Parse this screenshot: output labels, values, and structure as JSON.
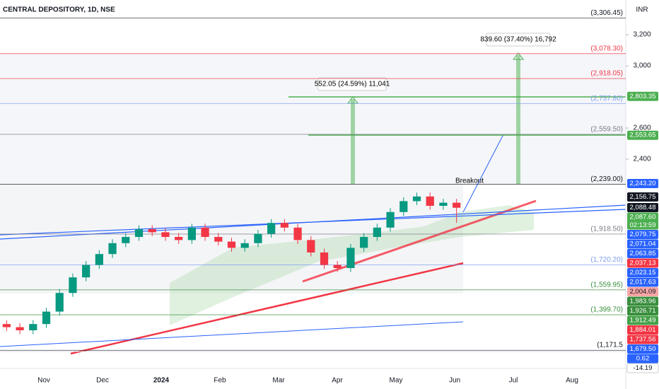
{
  "chart_data": {
    "type": "candlestick",
    "title": "CENTRAL DEPOSITORY, 1D, NSE",
    "currency": "INR",
    "ylim": [
      1068,
      3423
    ],
    "yticks": [
      {
        "value": 2400,
        "label": "2,400"
      },
      {
        "value": 2600,
        "label": "2,600"
      },
      {
        "value": 3000,
        "label": "3,000"
      },
      {
        "value": 3200,
        "label": "3,200"
      }
    ],
    "categories": [
      "Nov",
      "Dec",
      "2024",
      "Feb",
      "Mar",
      "Apr",
      "May",
      "Jun",
      "Jul",
      "Aug"
    ],
    "up_color": "#089981",
    "down_color": "#f23645",
    "open": [
      1340,
      1320,
      1300,
      1340,
      1420,
      1540,
      1640,
      1720,
      1790,
      1860,
      1900,
      1950,
      1930,
      1900,
      1880,
      1960,
      1900,
      1870,
      1830,
      1860,
      1920,
      1990,
      1960,
      1880,
      1800,
      1720,
      1700,
      1830,
      1900,
      1960,
      2060,
      2130,
      2160,
      2100,
      2120
    ],
    "high": [
      1365,
      1345,
      1365,
      1445,
      1565,
      1665,
      1745,
      1815,
      1885,
      1925,
      1975,
      1975,
      1955,
      1925,
      1985,
      1985,
      1925,
      1895,
      1885,
      1945,
      2015,
      2015,
      1985,
      1905,
      1825,
      1745,
      1855,
      1925,
      1985,
      2085,
      2155,
      2185,
      2185,
      2145,
      2145
    ],
    "low": [
      1295,
      1275,
      1275,
      1315,
      1395,
      1515,
      1615,
      1695,
      1765,
      1835,
      1875,
      1905,
      1875,
      1855,
      1855,
      1875,
      1845,
      1805,
      1805,
      1835,
      1895,
      1935,
      1855,
      1775,
      1695,
      1675,
      1675,
      1805,
      1875,
      1935,
      2035,
      2105,
      2075,
      2075,
      1990
    ],
    "close": [
      1320,
      1300,
      1340,
      1420,
      1540,
      1640,
      1720,
      1790,
      1860,
      1900,
      1950,
      1930,
      1900,
      1880,
      1960,
      1900,
      1870,
      1830,
      1860,
      1920,
      1990,
      1960,
      1880,
      1800,
      1720,
      1700,
      1830,
      1900,
      1960,
      2060,
      2130,
      2160,
      2100,
      2120,
      2087.6
    ],
    "levels": [
      {
        "value": 3306.45,
        "label": "(3,306.45)",
        "color": "#131722"
      },
      {
        "value": 3078.3,
        "label": "(3,078.30)",
        "color": "#f23645"
      },
      {
        "value": 2918.05,
        "label": "(2,918.05)",
        "color": "#f23645"
      },
      {
        "value": 2757.8,
        "label": "(2,757.80)",
        "color": "#7b9ef0"
      },
      {
        "value": 2559.5,
        "label": "(2,559.50)",
        "color": "#787b86"
      },
      {
        "value": 2239,
        "label": "(2,239.00)",
        "color": "#131722"
      },
      {
        "value": 1918.5,
        "label": "(1,918.50)",
        "color": "#787b86"
      },
      {
        "value": 1720.2,
        "label": "(1,720.20)",
        "color": "#7b9ef0"
      },
      {
        "value": 1559.95,
        "label": "(1,559.95)",
        "color": "#388e3c"
      },
      {
        "value": 1399.7,
        "label": "(1,399.70)",
        "color": "#388e3c"
      },
      {
        "value": 1171.5,
        "label": "(1,171.5",
        "color": "#131722"
      }
    ],
    "price_tags": [
      {
        "value": 2803.35,
        "label": "2,803.35",
        "color": "#4caf50"
      },
      {
        "value": 2553.65,
        "label": "2,553.65",
        "color": "#4caf50"
      },
      {
        "value": 2243.2,
        "label": "2,243.20",
        "color": "#2962ff"
      },
      {
        "value": 2156.75,
        "label": "2,156.75",
        "color": "#131722"
      },
      {
        "value": 2088.48,
        "label": "2,088.48",
        "color": "#131722"
      },
      {
        "value": 2087.6,
        "label": "2,087.60",
        "color": "#4caf50"
      },
      {
        "value": 2079.75,
        "label": "2,079.75",
        "color": "#2962ff"
      },
      {
        "value": 2071.04,
        "label": "2,071.04",
        "color": "#2962ff"
      },
      {
        "value": 2063.85,
        "label": "2,063.85",
        "color": "#2962ff"
      },
      {
        "value": 2037.13,
        "label": "2,037.13",
        "color": "#f23645"
      },
      {
        "value": 2023.15,
        "label": "2,023.15",
        "color": "#2962ff"
      },
      {
        "value": 2017.63,
        "label": "2,017.63",
        "color": "#2962ff"
      },
      {
        "value": 2004.09,
        "label": "2,004.09",
        "color": "#f7a5a5"
      },
      {
        "value": 1983.96,
        "label": "1,983.96",
        "color": "#388e3c"
      },
      {
        "value": 1926.71,
        "label": "1,926.71",
        "color": "#388e3c"
      },
      {
        "value": 1912.49,
        "label": "1,912.49",
        "color": "#43a047"
      },
      {
        "value": 1884.01,
        "label": "1,884.01",
        "color": "#f23645"
      },
      {
        "value": 1737.56,
        "label": "1,737.56",
        "color": "#f23645"
      },
      {
        "value": 1679.5,
        "label": "1,679.50",
        "color": "#2962ff"
      },
      {
        "value": 0.62,
        "label": "0.62",
        "color": "#2962ff"
      },
      {
        "value": -14.19,
        "label": "-14.19",
        "color": "#ffffff"
      }
    ],
    "countdown": "02:13:59",
    "annotations": [
      "Breakout",
      "552.05 (24.59%) 11,041",
      "839.60 (37.40%) 16,792"
    ]
  }
}
